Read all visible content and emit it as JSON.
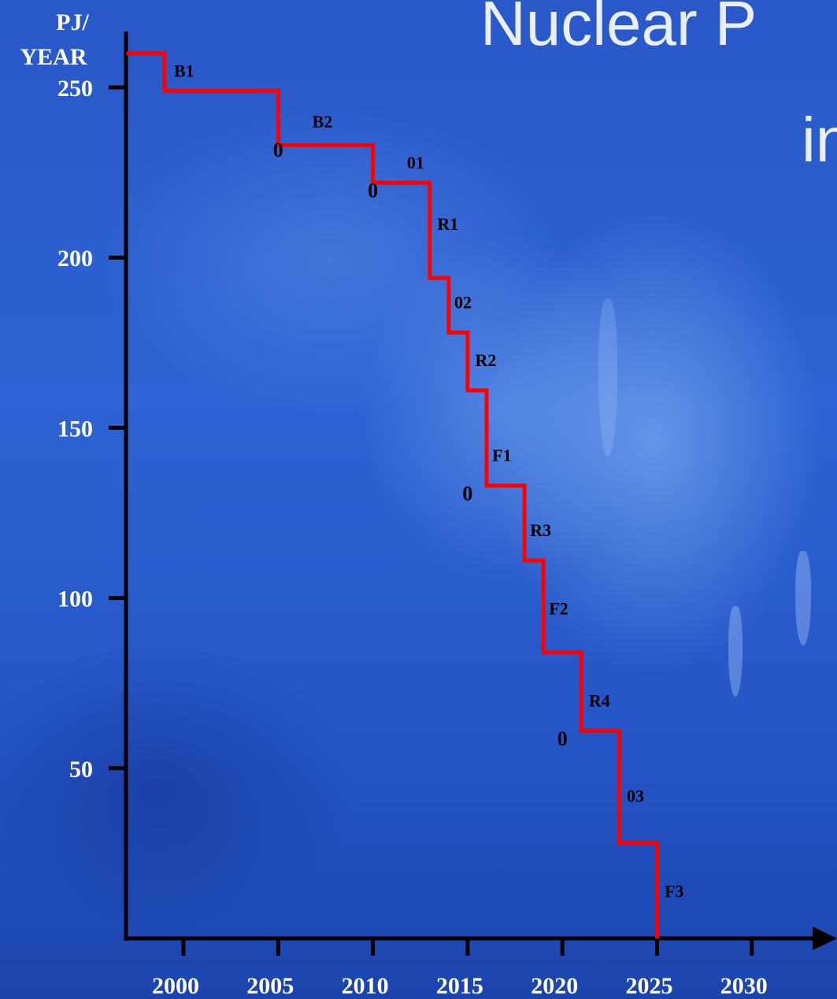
{
  "title_fragment_1": "Nuclear P",
  "title_fragment_2": "in",
  "chart_data": {
    "type": "line",
    "ylabel_line1": "PJ/",
    "ylabel_line2": "YEAR",
    "y_ticks": [
      50,
      100,
      150,
      200,
      250
    ],
    "x_ticks": [
      2000,
      2005,
      2010,
      2015,
      2020,
      2025,
      2030
    ],
    "xlim": [
      1997,
      2032
    ],
    "ylim": [
      0,
      260
    ],
    "step_points": [
      [
        1997,
        260
      ],
      [
        1999,
        260
      ],
      [
        1999,
        249
      ],
      [
        2005,
        249
      ],
      [
        2005,
        233
      ],
      [
        2010,
        233
      ],
      [
        2010,
        222
      ],
      [
        2013,
        222
      ],
      [
        2013,
        194
      ],
      [
        2014,
        194
      ],
      [
        2014,
        178
      ],
      [
        2015,
        178
      ],
      [
        2015,
        161
      ],
      [
        2016,
        161
      ],
      [
        2016,
        133
      ],
      [
        2018,
        133
      ],
      [
        2018,
        111
      ],
      [
        2019,
        111
      ],
      [
        2019,
        84
      ],
      [
        2021,
        84
      ],
      [
        2021,
        61
      ],
      [
        2023,
        61
      ],
      [
        2023,
        28
      ],
      [
        2025,
        28
      ],
      [
        2025,
        0
      ]
    ],
    "step_labels": [
      {
        "text": "B1",
        "x": 1999.5,
        "y": 255
      },
      {
        "text": "B2",
        "x": 2006.8,
        "y": 240
      },
      {
        "text": "01",
        "x": 2011.8,
        "y": 228
      },
      {
        "text": "R1",
        "x": 2013.4,
        "y": 210
      },
      {
        "text": "02",
        "x": 2014.3,
        "y": 187
      },
      {
        "text": "R2",
        "x": 2015.4,
        "y": 170
      },
      {
        "text": "F1",
        "x": 2016.3,
        "y": 142
      },
      {
        "text": "R3",
        "x": 2018.3,
        "y": 120
      },
      {
        "text": "F2",
        "x": 2019.3,
        "y": 97
      },
      {
        "text": "R4",
        "x": 2021.4,
        "y": 70
      },
      {
        "text": "03",
        "x": 2023.4,
        "y": 42
      },
      {
        "text": "F3",
        "x": 2025.4,
        "y": 14
      }
    ],
    "zero_marks": [
      {
        "x": 2005,
        "y": 232
      },
      {
        "x": 2010,
        "y": 220
      },
      {
        "x": 2015,
        "y": 131
      },
      {
        "x": 2020,
        "y": 59
      }
    ],
    "line_color": "#ff0000",
    "axis_color": "#000000"
  }
}
